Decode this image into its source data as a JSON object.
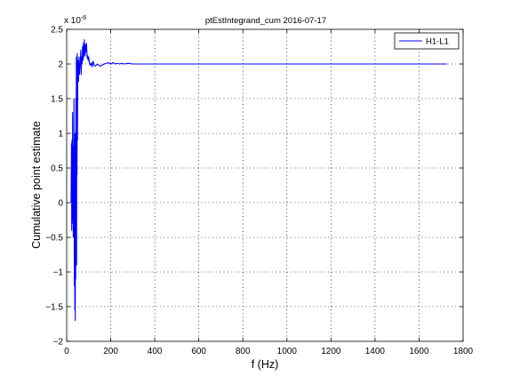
{
  "chart_data": {
    "type": "line",
    "title": "ptEstIntegrand_cum 2016-07-17",
    "xlabel": "f (Hz)",
    "ylabel": "Cumulative point estimate",
    "exponent_base": "x 10",
    "exponent_power": "-6",
    "xlim": [
      0,
      1800
    ],
    "ylim": [
      -2.0,
      2.5
    ],
    "xticks": [
      0,
      200,
      400,
      600,
      800,
      1000,
      1200,
      1400,
      1600,
      1800
    ],
    "yticks": [
      -2,
      -1.5,
      -1,
      -0.5,
      0,
      0.5,
      1,
      1.5,
      2,
      2.5
    ],
    "ytick_labels": [
      "−2",
      "−1.5",
      "−1",
      "−0.5",
      "0",
      "0.5",
      "1",
      "1.5",
      "2",
      "2.5"
    ],
    "grid": true,
    "legend": {
      "position": "top-right",
      "entries": [
        "H1-L1"
      ]
    },
    "series": [
      {
        "name": "H1-L1",
        "color": "#0000ff",
        "x": [
          20,
          22,
          23,
          24,
          25,
          26,
          27,
          28,
          29,
          30,
          31,
          32,
          33,
          34,
          35,
          36,
          37,
          38,
          39,
          40,
          41,
          42,
          43,
          44,
          45,
          46,
          47,
          48,
          49,
          50,
          52,
          54,
          56,
          58,
          60,
          62,
          64,
          66,
          68,
          70,
          72,
          74,
          76,
          78,
          80,
          82,
          84,
          86,
          88,
          90,
          92,
          94,
          96,
          98,
          100,
          104,
          108,
          112,
          116,
          120,
          125,
          130,
          140,
          150,
          160,
          170,
          180,
          190,
          200,
          210,
          220,
          230,
          240,
          250,
          260,
          280,
          300,
          350,
          400,
          500,
          600,
          800,
          1000,
          1200,
          1400,
          1600,
          1726
        ],
        "y": [
          0.0,
          0.85,
          -0.4,
          0.9,
          -0.3,
          0.2,
          1.3,
          -0.2,
          0.7,
          -0.5,
          0.8,
          -0.1,
          1.5,
          -0.2,
          -1.2,
          0.9,
          -1.55,
          1.0,
          -1.7,
          0.5,
          -1.1,
          1.5,
          -0.8,
          2.1,
          -0.9,
          1.7,
          0.4,
          2.15,
          0.9,
          1.6,
          2.05,
          1.75,
          2.1,
          1.85,
          1.95,
          2.05,
          2.2,
          1.85,
          2.1,
          2.0,
          2.25,
          2.05,
          2.3,
          2.1,
          2.35,
          2.2,
          2.12,
          2.28,
          2.18,
          2.3,
          2.15,
          2.08,
          2.12,
          2.05,
          2.1,
          2.0,
          1.98,
          2.02,
          1.96,
          2.04,
          1.98,
          1.97,
          2.0,
          1.97,
          1.98,
          2.0,
          2.01,
          2.02,
          2.0,
          2.02,
          2.0,
          2.01,
          2.0,
          2.01,
          2.0,
          2.01,
          2.0,
          2.0,
          2.0,
          2.0,
          2.0,
          2.0,
          2.0,
          2.0,
          2.0,
          2.0,
          2.0
        ]
      }
    ]
  }
}
